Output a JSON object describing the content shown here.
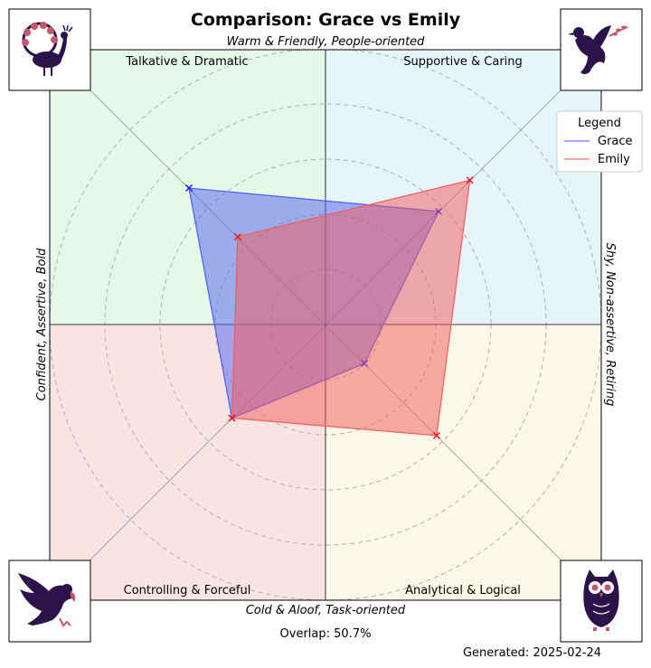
{
  "chart_data": {
    "type": "radar",
    "title": "Comparison: Grace vs Emily",
    "axis_labels": {
      "top": "Warm & Friendly, People-oriented",
      "bottom": "Cold & Aloof, Task-oriented",
      "left": "Confident, Assertive, Bold",
      "right": "Shy, Non-assertive, Retiring"
    },
    "quadrants": [
      {
        "name": "Talkative & Dramatic",
        "position": "top-left",
        "color": "#e6f8e6",
        "icon": "peacock-icon"
      },
      {
        "name": "Supportive & Caring",
        "position": "top-right",
        "color": "#e6f4fc",
        "icon": "dove-icon"
      },
      {
        "name": "Controlling & Forceful",
        "position": "bottom-left",
        "color": "#f9e4e4",
        "icon": "eagle-icon"
      },
      {
        "name": "Analytical & Logical",
        "position": "bottom-right",
        "color": "#faf8e6",
        "icon": "owl-icon"
      }
    ],
    "directions": [
      "Supportive & Caring",
      "Talkative & Dramatic",
      "Controlling & Forceful",
      "Analytical & Logical"
    ],
    "rlim": [
      0,
      1
    ],
    "grid_circles": 5,
    "series": [
      {
        "name": "Grace",
        "color": "#4d5ff0",
        "values": [
          0.58,
          0.7,
          0.48,
          0.2
        ]
      },
      {
        "name": "Emily",
        "color": "#f45a5a",
        "values": [
          0.74,
          0.45,
          0.48,
          0.57
        ]
      }
    ],
    "legend": {
      "title": "Legend",
      "location": "top-right"
    }
  },
  "footer": {
    "overlap": "Overlap: 50.7%",
    "generated": "Generated: 2025-02-24"
  }
}
